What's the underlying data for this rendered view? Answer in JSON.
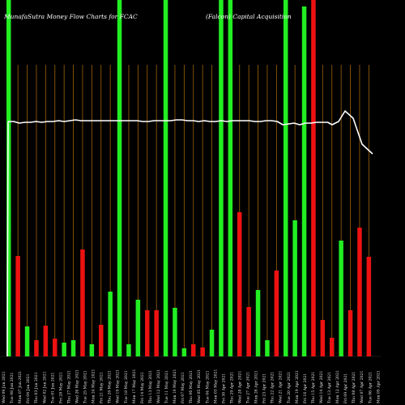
{
  "chart_data": {
    "type": "bar",
    "title_left": "MunafaSutra  Money Flow  Charts for FCAC",
    "title_right": "(Falcon) Capital Acquisition",
    "colors": {
      "background": "#000000",
      "up": "#22ee22",
      "down": "#ee1111",
      "grid": "#a0640a",
      "line": "#ffffff",
      "text": "#ffffff"
    },
    "ylim": [
      0,
      440
    ],
    "categories": [
      "Wed 09 Jun 2021",
      "Tue 08 Jun 2021",
      "Mon 07 Jun 2021",
      "Fri 04 Jun 2021",
      "Thu 03 Jun 2021",
      "Wed 02 Jun 2021",
      "Tue 01 Jun 2021",
      "Fri 28 May 2021",
      "Thu 27 May 2021",
      "Wed 26 May 2021",
      "Tue 25 May 2021",
      "Mon 24 May 2021",
      "Fri 21 May 2021",
      "Thu 20 May 2021",
      "Wed 19 May 2021",
      "Tue 18 May 2021",
      "Mon 17 May 2021",
      "Fri 14 May 2021",
      "Thu 13 May 2021",
      "Wed 12 May 2021",
      "Tue 11 May 2021",
      "Mon 10 May 2021",
      "Fri 07 May 2021",
      "Thu 06 May 2021",
      "Wed 05 May 2021",
      "Tue 04 May 2021",
      "Mon 03 May 2021",
      "Fri 30 Apr 2021",
      "Thu 29 Apr 2021",
      "Wed 28 Apr 2021",
      "Tue 27 Apr 2021",
      "Mon 26 Apr 2021",
      "Fri 23 Apr 2021",
      "Thu 22 Apr 2021",
      "Wed 21 Apr 2021",
      "Tue 20 Apr 2021",
      "Mon 19 Apr 2021",
      "Fri 16 Apr 2021",
      "Thu 15 Apr 2021",
      "Wed 14 Apr 2021",
      "Tue 13 Apr 2021",
      "Mon 12 Apr 2021",
      "Fri 09 Apr 2021",
      "Thu 08 Apr 2021",
      "Wed 07 Apr 2021",
      "Tue 06 Apr 2021",
      "Mon 05 Apr 2021"
    ],
    "tick_labels": [
      "Wed 09 Jun 2021",
      "Tue 08 Jun 2021",
      "Mon 07 Jun 2021",
      "Fri 04 Jun 2021",
      "Thu 03 Jun 2021",
      "Wed 02 Jun 2021",
      "Tue 01 Jun 2021",
      "Fri 28 May 2021",
      "Thu 27 May 2021",
      "Wed 26 May 2021",
      "Tue 25 May 2021",
      "Mon 24 May 2021",
      "Fri 21 May 2021",
      "Thu 20 May 2021",
      "Wed 19 May 2021",
      "Tue 18 May 2021",
      "Mon 17 May 2021",
      "Fri 14 May 2021",
      "Thu 13 May 2021",
      "Wed 12 May 2021",
      "Tue 11 May 2021",
      "Mon 10 May 2021",
      "Fri 07 May 2021",
      "Thu 06 May 2021",
      "Wed 05 May 2021",
      "Tue 04 May 2021",
      "Mon 03 May 2021",
      "Fri 30 Apr 2021",
      "Thu 29 Apr 2021",
      "Wed 28 Apr 2021",
      "Tue 27 Apr 2021",
      "Mon 26 Apr 2021",
      "Fri 23 Apr 2021",
      "Thu 22 Apr 2021",
      "Wed 21 Apr 2021",
      "Tue 20 Apr 2021",
      "Mon 19 Apr 2021",
      "Fri 16 Apr 2021",
      "Thu 15 Apr 2021",
      "Wed 14 Apr 2021",
      "Tue 13 Apr 2021",
      "Mon 12 Apr 2021",
      "Fri 09 Apr 2021",
      "Thu 08 Apr 2021",
      "Wed 07 Apr 2021",
      "Tue 06 Apr 2021",
      "Mon 05 Apr 2021"
    ],
    "bars": [
      {
        "value": 440,
        "color": "green"
      },
      {
        "value": 124,
        "color": "red"
      },
      {
        "value": 37,
        "color": "green"
      },
      {
        "value": 20,
        "color": "red"
      },
      {
        "value": 38,
        "color": "red"
      },
      {
        "value": 22,
        "color": "red"
      },
      {
        "value": 17,
        "color": "green"
      },
      {
        "value": 20,
        "color": "green"
      },
      {
        "value": 132,
        "color": "red"
      },
      {
        "value": 15,
        "color": "green"
      },
      {
        "value": 39,
        "color": "red"
      },
      {
        "value": 80,
        "color": "green"
      },
      {
        "value": 440,
        "color": "green"
      },
      {
        "value": 15,
        "color": "green"
      },
      {
        "value": 70,
        "color": "green"
      },
      {
        "value": 57,
        "color": "red"
      },
      {
        "value": 57,
        "color": "red"
      },
      {
        "value": 440,
        "color": "green"
      },
      {
        "value": 60,
        "color": "green"
      },
      {
        "value": 10,
        "color": "green"
      },
      {
        "value": 15,
        "color": "red"
      },
      {
        "value": 11,
        "color": "red"
      },
      {
        "value": 33,
        "color": "green"
      },
      {
        "value": 440,
        "color": "green"
      },
      {
        "value": 440,
        "color": "green"
      },
      {
        "value": 178,
        "color": "red"
      },
      {
        "value": 61,
        "color": "red"
      },
      {
        "value": 82,
        "color": "green"
      },
      {
        "value": 20,
        "color": "green"
      },
      {
        "value": 106,
        "color": "red"
      },
      {
        "value": 440,
        "color": "green"
      },
      {
        "value": 168,
        "color": "green"
      },
      {
        "value": 432,
        "color": "green"
      },
      {
        "value": 440,
        "color": "red"
      },
      {
        "value": 45,
        "color": "red"
      },
      {
        "value": 23,
        "color": "red"
      },
      {
        "value": 143,
        "color": "green"
      },
      {
        "value": 57,
        "color": "red"
      },
      {
        "value": 159,
        "color": "red"
      },
      {
        "value": 123,
        "color": "red"
      }
    ],
    "line": [
      [
        0,
        290
      ],
      [
        1,
        290
      ],
      [
        2,
        288
      ],
      [
        3,
        289
      ],
      [
        4,
        289
      ],
      [
        5,
        290
      ],
      [
        6,
        289
      ],
      [
        7,
        290
      ],
      [
        8,
        290
      ],
      [
        9,
        291
      ],
      [
        10,
        290
      ],
      [
        11,
        291
      ],
      [
        12,
        292
      ],
      [
        13,
        291
      ],
      [
        14,
        291
      ],
      [
        15,
        291
      ],
      [
        16,
        291
      ],
      [
        17,
        291
      ],
      [
        18,
        291
      ],
      [
        19,
        291
      ],
      [
        20,
        291
      ],
      [
        21,
        291
      ],
      [
        22,
        291
      ],
      [
        23,
        291
      ],
      [
        24,
        290
      ],
      [
        25,
        290
      ],
      [
        26,
        291
      ],
      [
        27,
        291
      ],
      [
        28,
        291
      ],
      [
        29,
        291
      ],
      [
        30,
        292
      ],
      [
        31,
        292
      ],
      [
        32,
        291
      ],
      [
        33,
        291
      ],
      [
        34,
        290
      ],
      [
        35,
        291
      ],
      [
        36,
        290
      ],
      [
        37,
        290
      ],
      [
        38,
        291
      ],
      [
        39,
        290
      ],
      [
        40,
        291
      ],
      [
        41,
        291
      ],
      [
        42,
        291
      ],
      [
        43,
        291
      ],
      [
        44,
        290
      ],
      [
        45,
        290
      ],
      [
        46,
        291
      ],
      [
        47,
        291
      ],
      [
        48,
        290
      ],
      [
        49,
        286
      ],
      [
        50,
        287
      ],
      [
        51,
        288
      ],
      [
        52,
        286
      ],
      [
        53,
        288
      ],
      [
        54,
        288
      ],
      [
        55,
        289
      ],
      [
        56,
        289
      ],
      [
        57,
        289
      ],
      [
        58,
        290
      ],
      [
        59,
        290
      ],
      [
        60,
        290
      ],
      [
        61,
        289
      ],
      [
        62,
        288
      ],
      [
        63,
        290
      ],
      [
        64,
        290
      ],
      [
        65,
        290
      ]
    ]
  }
}
